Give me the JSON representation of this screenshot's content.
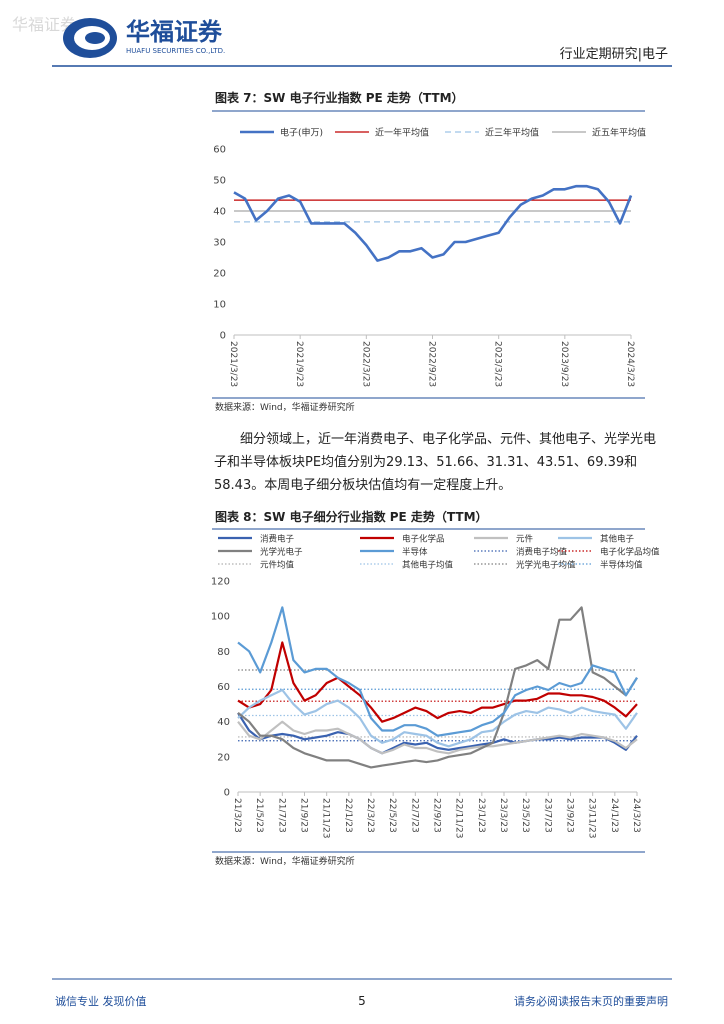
{
  "header": {
    "watermark": "华福证券",
    "logo_name": "华福证券",
    "logo_subtitle": "HUAFU SECURITIES CO.,LTD.",
    "report_type": "行业定期研究|电子"
  },
  "figures": [
    {
      "title": "图表 7：SW 电子行业指数 PE 走势（TTM）",
      "source": "数据来源：Wind，华福证券研究所",
      "chart_data": {
        "type": "line",
        "categories": [
          "2021/3/23",
          null,
          null,
          null,
          null,
          null,
          "2021/9/23",
          null,
          null,
          null,
          null,
          null,
          "2022/3/23",
          null,
          null,
          null,
          null,
          null,
          "2022/9/23",
          null,
          null,
          null,
          null,
          null,
          "2023/3/23",
          null,
          null,
          null,
          null,
          null,
          "2023/9/23",
          null,
          null,
          null,
          null,
          null,
          "2024/3/23"
        ],
        "series": [
          {
            "name": "电子(申万)",
            "color": "#4472c4",
            "values": [
              46,
              44,
              37,
              40,
              44,
              45,
              43,
              36,
              36,
              36,
              36,
              33,
              29,
              24,
              25,
              27,
              27,
              28,
              25,
              26,
              30,
              30,
              31,
              32,
              33,
              38,
              42,
              44,
              45,
              47,
              47,
              48,
              48,
              47,
              43,
              36,
              45
            ]
          }
        ],
        "reference_lines": [
          {
            "name": "近一年平均值",
            "color": "#c00000",
            "dash": "solid",
            "value": 43.5
          },
          {
            "name": "近三年平均值",
            "color": "#9dc3e6",
            "dash": "dashed",
            "value": 36.5
          },
          {
            "name": "近五年平均值",
            "color": "#a6a6a6",
            "dash": "solid",
            "value": 40
          }
        ],
        "ylim": [
          0,
          60
        ],
        "yticks": [
          0,
          10,
          20,
          30,
          40,
          50,
          60
        ],
        "grid": false
      }
    },
    {
      "title": "图表 8：SW 电子细分行业指数 PE 走势（TTM）",
      "source": "数据来源：Wind，华福证券研究所",
      "chart_data": {
        "type": "line",
        "categories": [
          "21/3/23",
          null,
          "21/5/23",
          null,
          "21/7/23",
          null,
          "21/9/23",
          null,
          "21/11/23",
          null,
          "22/1/23",
          null,
          "22/3/23",
          null,
          "22/5/23",
          null,
          "22/7/23",
          null,
          "22/9/23",
          null,
          "22/11/23",
          null,
          "23/1/23",
          null,
          "23/3/23",
          null,
          "23/5/23",
          null,
          "23/7/23",
          null,
          "23/9/23",
          null,
          "23/11/23",
          null,
          "24/1/23",
          null,
          "24/3/23"
        ],
        "series": [
          {
            "name": "消费电子",
            "color": "#3a62b0",
            "values": [
              45,
              35,
              30,
              32,
              33,
              32,
              30,
              31,
              32,
              34,
              33,
              30,
              25,
              22,
              25,
              28,
              27,
              28,
              25,
              24,
              25,
              26,
              27,
              28,
              30,
              28,
              29,
              30,
              30,
              31,
              30,
              31,
              31,
              31,
              28,
              24,
              32
            ]
          },
          {
            "name": "电子化学品",
            "color": "#c00000",
            "values": [
              52,
              48,
              50,
              58,
              85,
              62,
              52,
              55,
              62,
              65,
              60,
              55,
              48,
              40,
              42,
              45,
              48,
              46,
              42,
              45,
              46,
              45,
              48,
              48,
              50,
              52,
              52,
              53,
              56,
              56,
              55,
              55,
              54,
              52,
              48,
              43,
              50
            ]
          },
          {
            "name": "元件",
            "color": "#c0c0c0",
            "values": [
              40,
              32,
              30,
              35,
              40,
              35,
              33,
              35,
              35,
              36,
              33,
              30,
              25,
              22,
              24,
              27,
              25,
              25,
              23,
              22,
              24,
              25,
              26,
              26,
              27,
              28,
              29,
              30,
              31,
              32,
              31,
              33,
              32,
              31,
              29,
              25,
              30
            ]
          },
          {
            "name": "其他电子",
            "color": "#9dc3e6",
            "values": [
              42,
              48,
              52,
              55,
              58,
              50,
              44,
              46,
              50,
              52,
              48,
              42,
              32,
              28,
              30,
              34,
              33,
              32,
              28,
              26,
              28,
              30,
              34,
              35,
              40,
              44,
              46,
              45,
              48,
              47,
              45,
              48,
              46,
              45,
              44,
              36,
              45
            ]
          },
          {
            "name": "光学光电子",
            "color": "#808080",
            "values": [
              45,
              40,
              32,
              32,
              30,
              25,
              22,
              20,
              18,
              18,
              18,
              16,
              14,
              15,
              16,
              17,
              18,
              17,
              18,
              20,
              21,
              22,
              25,
              28,
              45,
              70,
              72,
              75,
              70,
              98,
              98,
              105,
              68,
              65,
              60,
              55,
              65
            ]
          },
          {
            "name": "半导体",
            "color": "#5b9bd5",
            "values": [
              85,
              80,
              68,
              85,
              105,
              75,
              68,
              70,
              70,
              65,
              62,
              58,
              42,
              35,
              35,
              38,
              38,
              36,
              32,
              33,
              34,
              35,
              38,
              40,
              45,
              55,
              58,
              60,
              58,
              62,
              60,
              62,
              72,
              70,
              68,
              55,
              65
            ]
          }
        ],
        "reference_lines": [
          {
            "name": "消费电子均值",
            "color": "#3a62b0",
            "dash": "dotted",
            "value": 29.13
          },
          {
            "name": "电子化学品均值",
            "color": "#c00000",
            "dash": "dotted",
            "value": 51.66
          },
          {
            "name": "元件均值",
            "color": "#b0b0b0",
            "dash": "dotted",
            "value": 31.31
          },
          {
            "name": "其他电子均值",
            "color": "#9dc3e6",
            "dash": "dotted",
            "value": 43.51
          },
          {
            "name": "光学光电子均值",
            "color": "#808080",
            "dash": "dotted",
            "value": 69.39
          },
          {
            "name": "半导体均值",
            "color": "#5b9bd5",
            "dash": "dotted",
            "value": 58.43
          }
        ],
        "ylim": [
          0,
          120
        ],
        "yticks": [
          0,
          20,
          40,
          60,
          80,
          100,
          120
        ],
        "grid": false
      }
    }
  ],
  "paragraph": "细分领域上，近一年消费电子、电子化学品、元件、其他电子、光学光电子和半导体板块PE均值分别为29.13、51.66、31.31、43.51、69.39和58.43。本周电子细分板块估值均有一定程度上升。",
  "footer": {
    "slogan": "诚信专业  发现价值",
    "page_number": "5",
    "disclaimer": "请务必阅读报告末页的重要声明"
  }
}
